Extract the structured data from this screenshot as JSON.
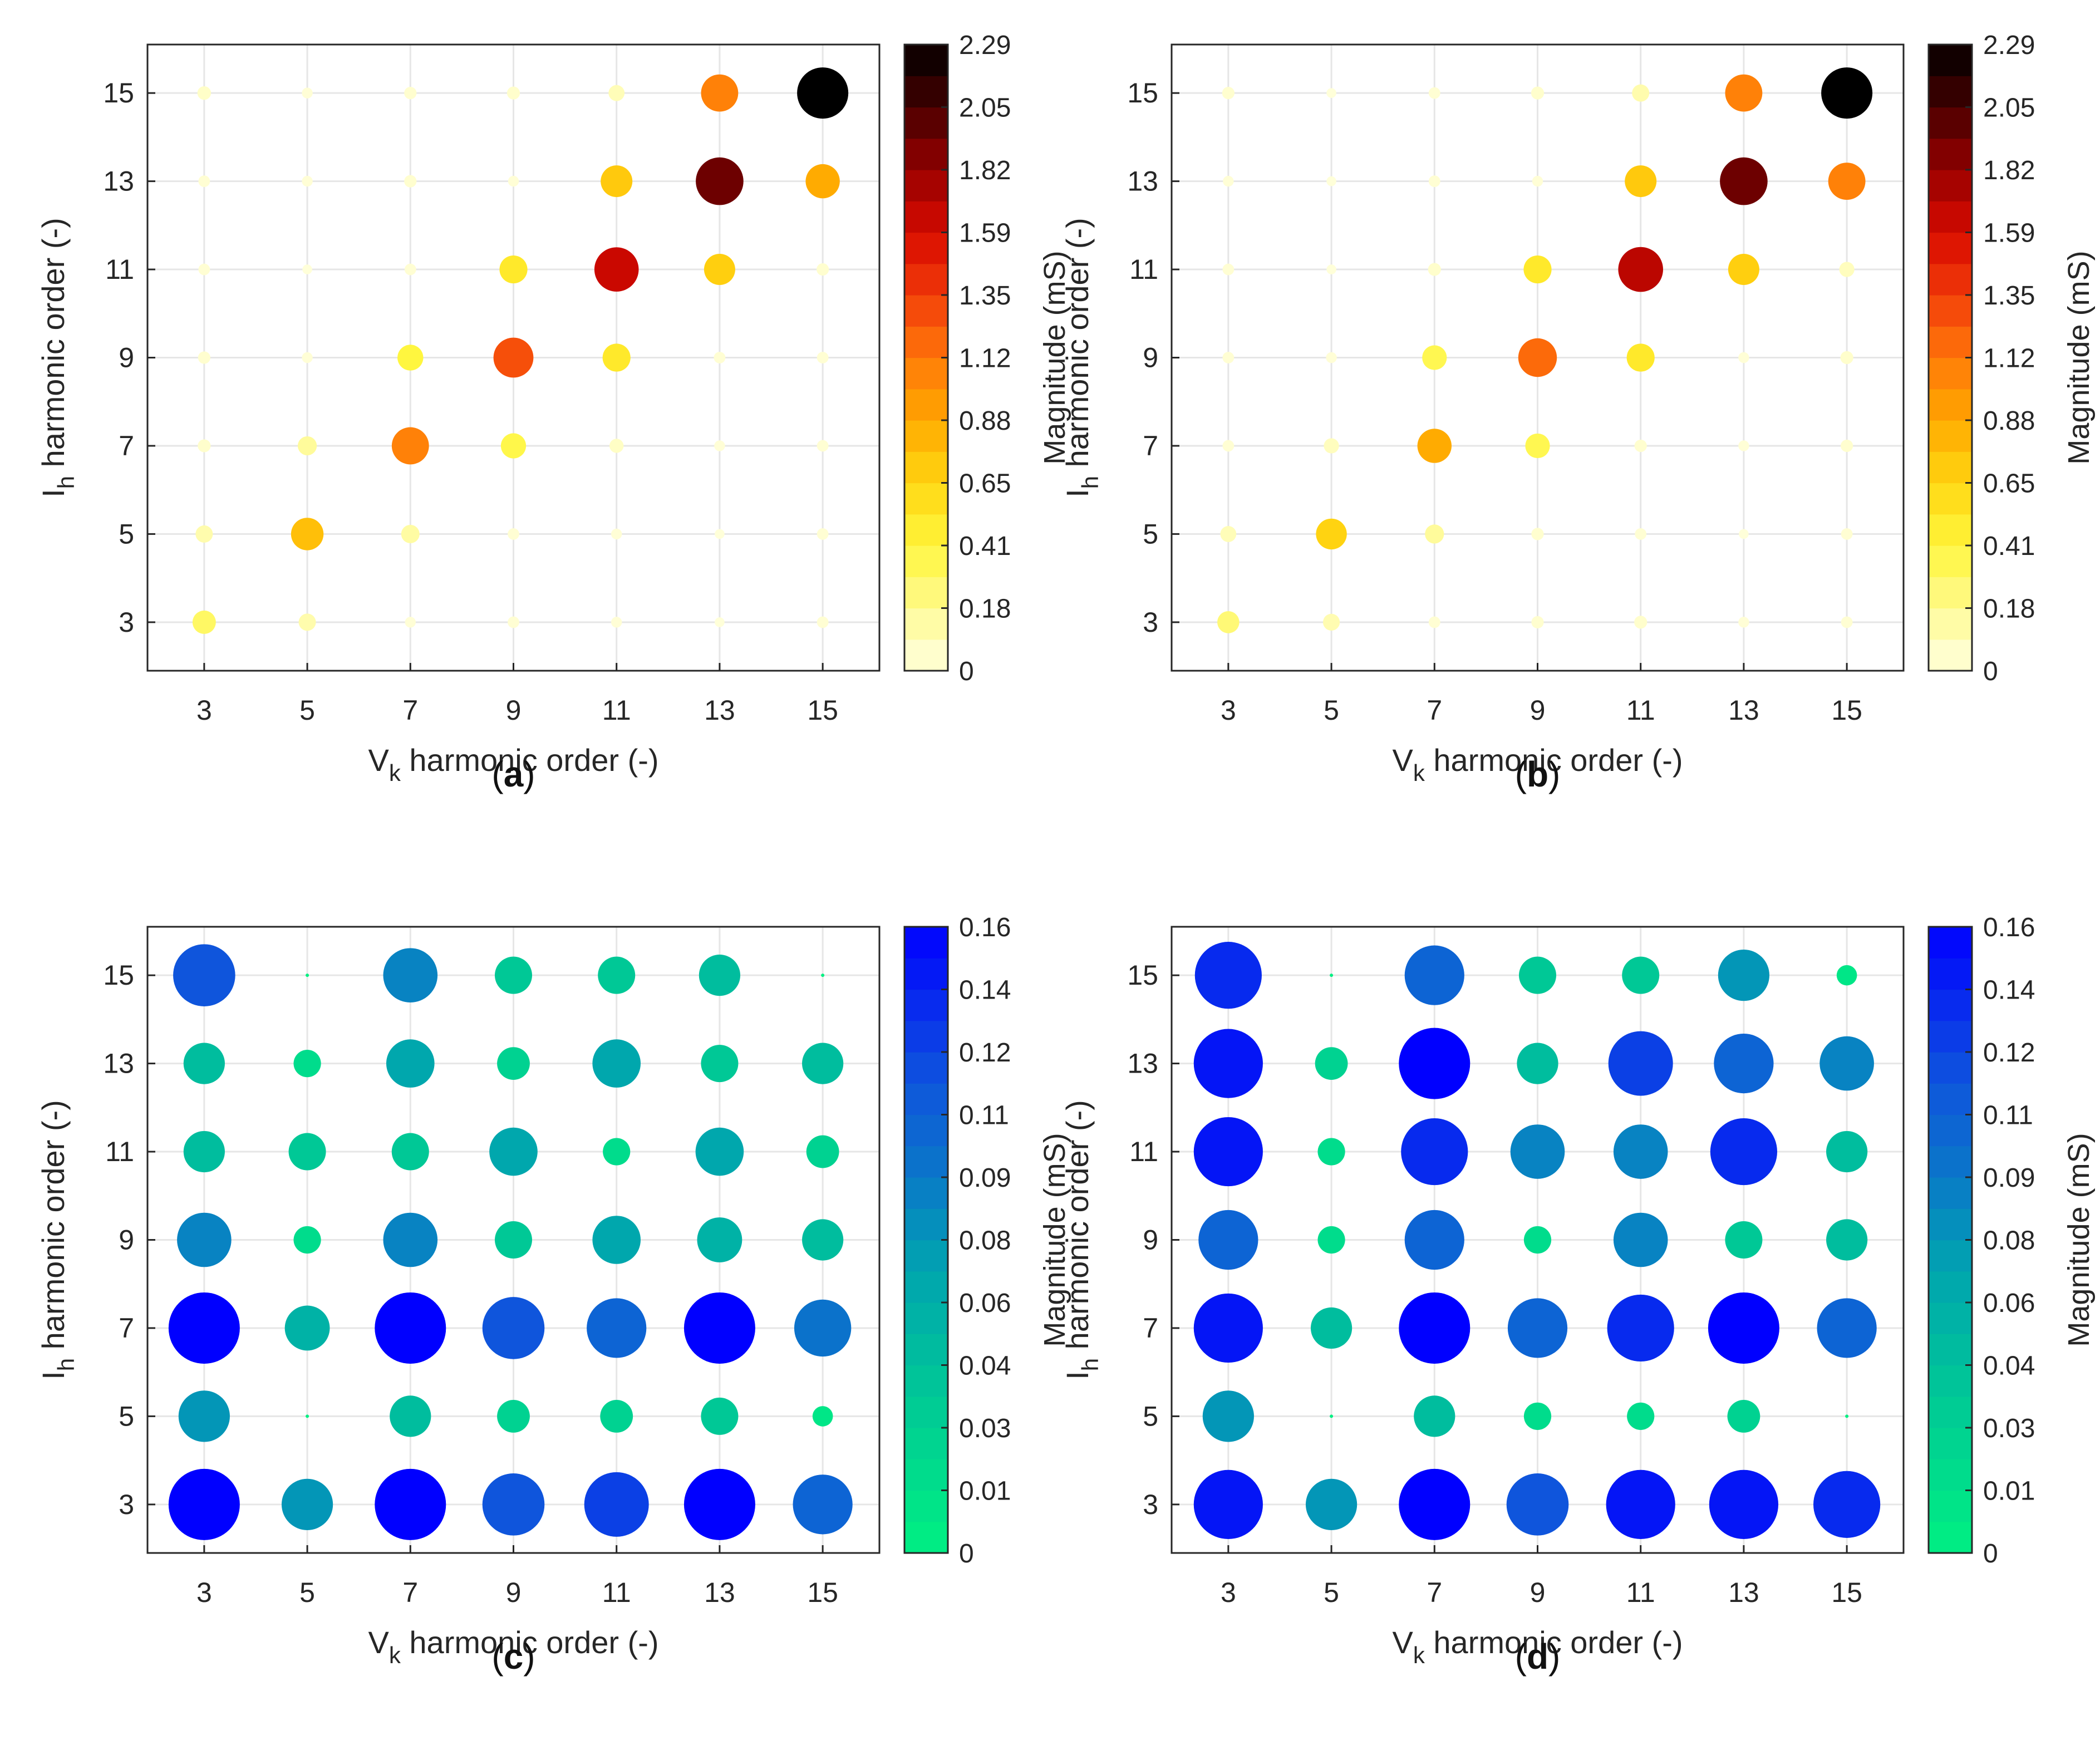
{
  "chart_data": [
    {
      "panel_label": "a",
      "type": "scatter",
      "x": [
        3,
        5,
        7,
        9,
        11,
        13,
        15
      ],
      "y": [
        3,
        5,
        7,
        9,
        11,
        13,
        15
      ],
      "xlabel_main": "V",
      "xlabel_sub": "k",
      "xlabel_rest": " harmonic order (-)",
      "ylabel_main": "I",
      "ylabel_sub": "h",
      "ylabel_rest": " harmonic order (-)",
      "colorbar_label": "Magnitude (mS)",
      "colorbar_ticks": [
        "2.29",
        "2.05",
        "1.82",
        "1.59",
        "1.35",
        "1.12",
        "0.88",
        "0.65",
        "0.41",
        "0.18",
        "0"
      ],
      "colormap": "hot",
      "crange": [
        0,
        2.29
      ],
      "matrix_rows_y_desc": [
        [
          0.07,
          0.03,
          0.05,
          0.06,
          0.12,
          1.1,
          2.29
        ],
        [
          0.04,
          0.03,
          0.05,
          0.03,
          0.75,
          1.95,
          0.9
        ],
        [
          0.04,
          0.02,
          0.04,
          0.55,
          1.65,
          0.72,
          0.05
        ],
        [
          0.05,
          0.03,
          0.45,
          1.3,
          0.55,
          0.04,
          0.04
        ],
        [
          0.06,
          0.2,
          1.1,
          0.42,
          0.08,
          0.03,
          0.04
        ],
        [
          0.15,
          0.8,
          0.18,
          0.04,
          0.03,
          0.02,
          0.04
        ],
        [
          0.35,
          0.15,
          0.03,
          0.04,
          0.03,
          0.02,
          0.04
        ]
      ]
    },
    {
      "panel_label": "b",
      "type": "scatter",
      "x": [
        3,
        5,
        7,
        9,
        11,
        13,
        15
      ],
      "y": [
        3,
        5,
        7,
        9,
        11,
        13,
        15
      ],
      "xlabel_main": "V",
      "xlabel_sub": "k",
      "xlabel_rest": " harmonic order (-)",
      "ylabel_main": "I",
      "ylabel_sub": "h",
      "ylabel_rest": " harmonic order (-)",
      "colorbar_label": "Magnitude (mS)",
      "colorbar_ticks": [
        "2.29",
        "2.05",
        "1.82",
        "1.59",
        "1.35",
        "1.12",
        "0.88",
        "0.65",
        "0.41",
        "0.18",
        "0"
      ],
      "colormap": "hot",
      "crange": [
        0,
        2.29
      ],
      "matrix_rows_y_desc": [
        [
          0.05,
          0.02,
          0.04,
          0.06,
          0.15,
          1.1,
          2.29
        ],
        [
          0.03,
          0.02,
          0.04,
          0.03,
          0.75,
          1.95,
          1.1
        ],
        [
          0.04,
          0.02,
          0.06,
          0.55,
          1.7,
          0.72,
          0.1
        ],
        [
          0.04,
          0.03,
          0.4,
          1.2,
          0.55,
          0.03,
          0.06
        ],
        [
          0.04,
          0.1,
          0.9,
          0.4,
          0.05,
          0.03,
          0.05
        ],
        [
          0.12,
          0.7,
          0.2,
          0.05,
          0.04,
          0.02,
          0.04
        ],
        [
          0.3,
          0.14,
          0.04,
          0.05,
          0.06,
          0.03,
          0.04
        ]
      ]
    },
    {
      "panel_label": "c",
      "type": "scatter",
      "x": [
        3,
        5,
        7,
        9,
        11,
        13,
        15
      ],
      "y": [
        3,
        5,
        7,
        9,
        11,
        13,
        15
      ],
      "xlabel_main": "V",
      "xlabel_sub": "k",
      "xlabel_rest": " harmonic order (-)",
      "ylabel_main": "I",
      "ylabel_sub": "h",
      "ylabel_rest": " harmonic order (-)",
      "colorbar_label": "Magnitude (mS)",
      "colorbar_ticks": [
        "0.16",
        "0.14",
        "0.12",
        "0.11",
        "0.09",
        "0.08",
        "0.06",
        "0.04",
        "0.03",
        "0.01",
        "0"
      ],
      "colormap": "cool",
      "crange": [
        0,
        0.16
      ],
      "matrix_rows_y_desc": [
        [
          0.12,
          0.0,
          0.09,
          0.04,
          0.04,
          0.05,
          0.0
        ],
        [
          0.05,
          0.02,
          0.07,
          0.03,
          0.07,
          0.04,
          0.05
        ],
        [
          0.05,
          0.04,
          0.04,
          0.07,
          0.02,
          0.07,
          0.03
        ],
        [
          0.09,
          0.02,
          0.09,
          0.04,
          0.07,
          0.06,
          0.05
        ],
        [
          0.16,
          0.06,
          0.16,
          0.12,
          0.11,
          0.16,
          0.1
        ],
        [
          0.08,
          0.0,
          0.05,
          0.03,
          0.03,
          0.04,
          0.01
        ],
        [
          0.16,
          0.08,
          0.16,
          0.12,
          0.13,
          0.16,
          0.11
        ]
      ]
    },
    {
      "panel_label": "d",
      "type": "scatter",
      "x": [
        3,
        5,
        7,
        9,
        11,
        13,
        15
      ],
      "y": [
        3,
        5,
        7,
        9,
        11,
        13,
        15
      ],
      "xlabel_main": "V",
      "xlabel_sub": "k",
      "xlabel_rest": " harmonic order (-)",
      "ylabel_main": "I",
      "ylabel_sub": "h",
      "ylabel_rest": " harmonic order (-)",
      "colorbar_label": "Magnitude (mS)",
      "colorbar_ticks": [
        "0.16",
        "0.14",
        "0.12",
        "0.11",
        "0.09",
        "0.08",
        "0.06",
        "0.04",
        "0.03",
        "0.01",
        "0"
      ],
      "colormap": "cool",
      "crange": [
        0,
        0.16
      ],
      "matrix_rows_y_desc": [
        [
          0.14,
          0.0,
          0.11,
          0.04,
          0.04,
          0.08,
          0.01
        ],
        [
          0.15,
          0.03,
          0.16,
          0.05,
          0.13,
          0.11,
          0.09
        ],
        [
          0.15,
          0.02,
          0.14,
          0.09,
          0.09,
          0.14,
          0.05
        ],
        [
          0.11,
          0.02,
          0.11,
          0.02,
          0.09,
          0.04,
          0.05
        ],
        [
          0.15,
          0.05,
          0.16,
          0.11,
          0.14,
          0.16,
          0.11
        ],
        [
          0.08,
          0.0,
          0.05,
          0.02,
          0.02,
          0.03,
          0.0
        ],
        [
          0.15,
          0.08,
          0.16,
          0.12,
          0.15,
          0.15,
          0.14
        ]
      ]
    }
  ]
}
